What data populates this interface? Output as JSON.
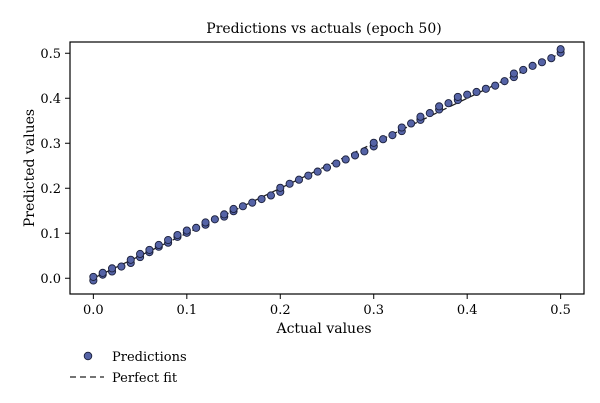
{
  "chart_data": {
    "type": "scatter",
    "title": "Predictions vs actuals (epoch 50)",
    "xlabel": "Actual values",
    "ylabel": "Predicted values",
    "xlim": [
      -0.025,
      0.525
    ],
    "ylim": [
      -0.035,
      0.525
    ],
    "xticks": [
      "0.0",
      "0.1",
      "0.2",
      "0.3",
      "0.4",
      "0.5"
    ],
    "yticks": [
      "0.0",
      "0.1",
      "0.2",
      "0.3",
      "0.4",
      "0.5"
    ],
    "grid": false,
    "legend": {
      "placement": "bottom-left, outside plot",
      "entries": [
        "Predictions",
        "Perfect fit"
      ]
    },
    "colors": {
      "points_fill": "#5563a6",
      "points_edge": "#1a1f3a",
      "line": "#222222"
    },
    "series": [
      {
        "name": "Predictions",
        "type": "scatter",
        "x": [
          0.0,
          0.0,
          0.01,
          0.01,
          0.02,
          0.02,
          0.03,
          0.04,
          0.04,
          0.05,
          0.05,
          0.06,
          0.06,
          0.07,
          0.07,
          0.08,
          0.08,
          0.09,
          0.09,
          0.1,
          0.1,
          0.11,
          0.12,
          0.12,
          0.13,
          0.14,
          0.14,
          0.15,
          0.15,
          0.16,
          0.17,
          0.18,
          0.19,
          0.2,
          0.2,
          0.21,
          0.22,
          0.23,
          0.24,
          0.25,
          0.26,
          0.27,
          0.28,
          0.29,
          0.3,
          0.3,
          0.31,
          0.32,
          0.33,
          0.33,
          0.34,
          0.35,
          0.35,
          0.36,
          0.37,
          0.37,
          0.38,
          0.39,
          0.39,
          0.4,
          0.41,
          0.42,
          0.43,
          0.44,
          0.45,
          0.45,
          0.46,
          0.47,
          0.48,
          0.49,
          0.5,
          0.5
        ],
        "y": [
          -0.005,
          0.003,
          0.008,
          0.012,
          0.015,
          0.022,
          0.026,
          0.034,
          0.041,
          0.047,
          0.054,
          0.058,
          0.063,
          0.07,
          0.074,
          0.079,
          0.085,
          0.092,
          0.096,
          0.101,
          0.106,
          0.112,
          0.119,
          0.124,
          0.131,
          0.137,
          0.142,
          0.149,
          0.154,
          0.16,
          0.168,
          0.176,
          0.184,
          0.192,
          0.201,
          0.21,
          0.219,
          0.228,
          0.237,
          0.246,
          0.255,
          0.264,
          0.273,
          0.282,
          0.293,
          0.301,
          0.309,
          0.318,
          0.327,
          0.335,
          0.344,
          0.352,
          0.359,
          0.367,
          0.375,
          0.382,
          0.389,
          0.396,
          0.403,
          0.408,
          0.414,
          0.421,
          0.428,
          0.438,
          0.447,
          0.455,
          0.463,
          0.472,
          0.48,
          0.489,
          0.501,
          0.509
        ]
      },
      {
        "name": "Perfect fit",
        "type": "line",
        "style": "dashed",
        "x": [
          0.0,
          0.5
        ],
        "y": [
          0.0,
          0.5
        ]
      }
    ]
  }
}
